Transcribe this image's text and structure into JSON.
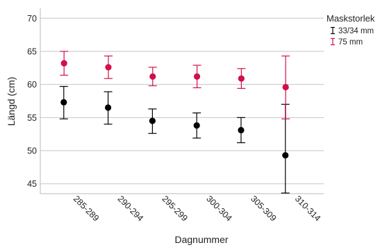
{
  "chart_data": {
    "type": "scatter",
    "title": "",
    "xlabel": "Dagnummer",
    "ylabel": "Längd (cm)",
    "categories": [
      "285-289",
      "290-294",
      "295-299",
      "300-304",
      "305-309",
      "310-314"
    ],
    "ylim": [
      43.5,
      71.5
    ],
    "yticks": [
      45,
      50,
      55,
      60,
      65,
      70
    ],
    "grid": "horizontal",
    "legend": {
      "title": "Maskstorlek",
      "position": "top-right"
    },
    "series": [
      {
        "name": "33/34 mm",
        "color": "#000000",
        "values": [
          57.3,
          56.5,
          54.5,
          53.8,
          53.1,
          49.3
        ],
        "ci_low": [
          54.8,
          54.0,
          52.6,
          51.9,
          51.2,
          43.6
        ],
        "ci_high": [
          59.7,
          58.9,
          56.3,
          55.7,
          55.0,
          57.0
        ]
      },
      {
        "name": "75 mm",
        "color": "#d1104a",
        "values": [
          63.2,
          62.6,
          61.2,
          61.2,
          60.9,
          59.6
        ],
        "ci_low": [
          61.4,
          60.9,
          59.8,
          59.5,
          59.4,
          54.8
        ],
        "ci_high": [
          65.0,
          64.3,
          62.6,
          62.9,
          62.4,
          64.3
        ]
      }
    ]
  }
}
